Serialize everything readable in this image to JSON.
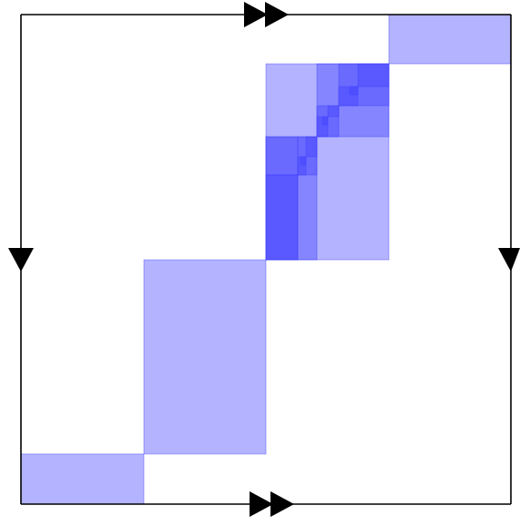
{
  "diagram": {
    "fill_color": "#4040ff",
    "fill_opacity": 0.4,
    "edge_color": "#000000",
    "edge_markers": {
      "top": "double-arrow-right-icon",
      "bottom": "double-arrow-right-icon",
      "left": "arrow-down-icon",
      "right": "arrow-down-icon"
    }
  }
}
